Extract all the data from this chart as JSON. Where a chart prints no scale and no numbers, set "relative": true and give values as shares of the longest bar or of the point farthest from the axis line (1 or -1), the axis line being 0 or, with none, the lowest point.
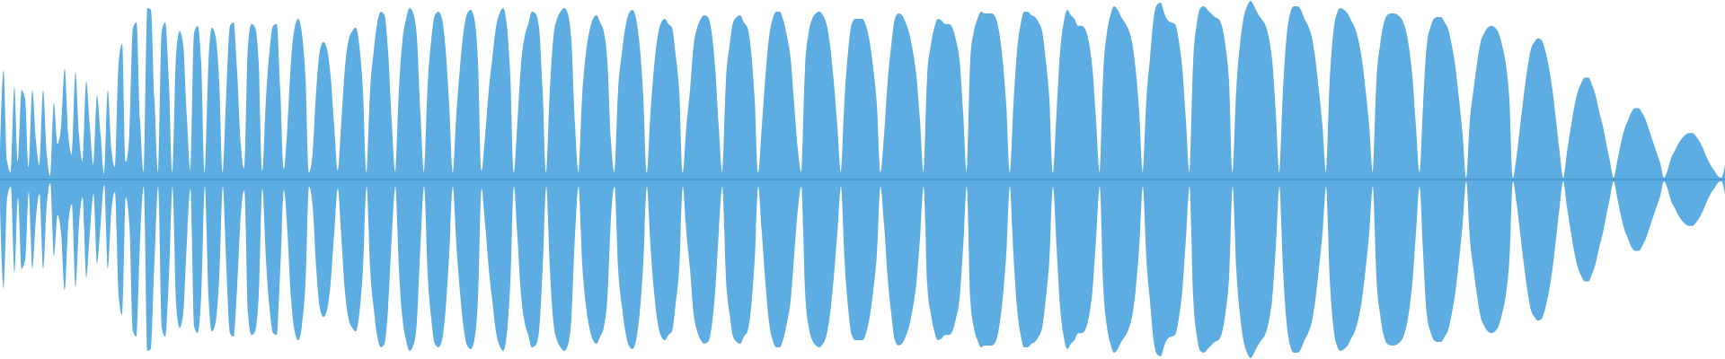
{
  "chart_data": {
    "type": "area",
    "relative": true,
    "categories": [
      null,
      null,
      null,
      null,
      null,
      null,
      null,
      null,
      null,
      null,
      null,
      null,
      null,
      null,
      null,
      null,
      null,
      null,
      null,
      null,
      null,
      null,
      null,
      null,
      null,
      null,
      null,
      null,
      null,
      null,
      null,
      null,
      null,
      null,
      null,
      null,
      null,
      null,
      null,
      null,
      null,
      null,
      null,
      null,
      null,
      null,
      null,
      null,
      null,
      null,
      null,
      null,
      null,
      null,
      null,
      null,
      null,
      null,
      null,
      null,
      null,
      null,
      null,
      null,
      null,
      null,
      null,
      null,
      null,
      null,
      null,
      null,
      null,
      null,
      null,
      null,
      null,
      null,
      null,
      null,
      null,
      null,
      null,
      null,
      null,
      null,
      null,
      null,
      null,
      null,
      null,
      null,
      null,
      null,
      null,
      null,
      null,
      null,
      null,
      null,
      null,
      null,
      null,
      null,
      null,
      null,
      null,
      null,
      null,
      null,
      null,
      null,
      null,
      null,
      null,
      null,
      null,
      null,
      null,
      null,
      null,
      null,
      null,
      null,
      null,
      null,
      null,
      null,
      null,
      null,
      null,
      null,
      null,
      null,
      null,
      null,
      null,
      null,
      null,
      null,
      null,
      null,
      null,
      null,
      null,
      null,
      null,
      null,
      null,
      null,
      null,
      null,
      null,
      null,
      null,
      null,
      null,
      null,
      null,
      null,
      null,
      null,
      null,
      null,
      null,
      null,
      null,
      null,
      null,
      null,
      null,
      null,
      null,
      null,
      null,
      null,
      null,
      null,
      null,
      null,
      null,
      null,
      null,
      null,
      null,
      null,
      null,
      null,
      null,
      null,
      null,
      null,
      null,
      null,
      null,
      null,
      null,
      null,
      null,
      null,
      null,
      null,
      null,
      null,
      null,
      null,
      null,
      null,
      null,
      null,
      null,
      null,
      null,
      null,
      null,
      null,
      null,
      null,
      null,
      null,
      null,
      null,
      null,
      null,
      null,
      null,
      null,
      null,
      null,
      null,
      null,
      null,
      null,
      null,
      null,
      null,
      null,
      null,
      null,
      null,
      null,
      null,
      null,
      null,
      null,
      null,
      null,
      null,
      null,
      null,
      null,
      null,
      null,
      null,
      null,
      null,
      null,
      null,
      null,
      null,
      null,
      null,
      null,
      null,
      null,
      null,
      null,
      null,
      null,
      null,
      null,
      null,
      null,
      null,
      null,
      null,
      null,
      null,
      null,
      null,
      null,
      null,
      null,
      null,
      null,
      null,
      null,
      null,
      null,
      null,
      null,
      null,
      null,
      null,
      null,
      null,
      null,
      null,
      null,
      null,
      null,
      null,
      null,
      null,
      null,
      null,
      null,
      null,
      null,
      null,
      null,
      null,
      null,
      null,
      null,
      null,
      null,
      null,
      null,
      null,
      null,
      null,
      null,
      null,
      null,
      null,
      null,
      null,
      null,
      null,
      null,
      null,
      null,
      null,
      null,
      null,
      null,
      null,
      null,
      null,
      null,
      null,
      null,
      null,
      null,
      null,
      null,
      null,
      null,
      null,
      null,
      null,
      null,
      null,
      null,
      null,
      null,
      null,
      null,
      null,
      null,
      null,
      null,
      null,
      null,
      null,
      null,
      null,
      null,
      null,
      null,
      null,
      null,
      null,
      null,
      null,
      null,
      null,
      null,
      null,
      null,
      null,
      null,
      null,
      null,
      null,
      null,
      null,
      null,
      null,
      null,
      null,
      null,
      null,
      null,
      null,
      null,
      null,
      null,
      null,
      null,
      null,
      null,
      null,
      null,
      null,
      null,
      null,
      null,
      null,
      null,
      null,
      null,
      null,
      null,
      null,
      null,
      null,
      null,
      null,
      null,
      null,
      null,
      null,
      null,
      null,
      null,
      null,
      null,
      null,
      null,
      null,
      null,
      null,
      null,
      null,
      null,
      null,
      null,
      null,
      null,
      null,
      null,
      null,
      null,
      null,
      null,
      null,
      null,
      null,
      null,
      null,
      null,
      null,
      null,
      null,
      null,
      null,
      null,
      null,
      null,
      null,
      null,
      null,
      null,
      null,
      null,
      null,
      null,
      null,
      null,
      null,
      null,
      null,
      null,
      null,
      null,
      null,
      null,
      null,
      null
    ],
    "series": [
      {
        "color": "#5dade2",
        "values": [
          0.16,
          0.61,
          0.1,
          0.04,
          0.52,
          0.1,
          0.5,
          0.45,
          0.07,
          0.5,
          0.22,
          0.08,
          0.5,
          0.15,
          0.02,
          0.43,
          0.2,
          0.3,
          0.62,
          0.25,
          0.14,
          0.6,
          0.25,
          0.1,
          0.55,
          0.3,
          0.08,
          0.47,
          0.25,
          0.03,
          0.5,
          0.17,
          0.07,
          0.65,
          0.76,
          0.1,
          0.25,
          0.85,
          0.88,
          0.33,
          0.04,
          0.96,
          0.95,
          0.45,
          0.04,
          0.83,
          0.88,
          0.55,
          0.04,
          0.7,
          0.83,
          0.75,
          0.35,
          0.05,
          0.82,
          0.86,
          0.65,
          0.04,
          0.65,
          0.85,
          0.8,
          0.55,
          0.04,
          0.5,
          0.86,
          0.88,
          0.6,
          0.2,
          0.06,
          0.75,
          0.87,
          0.85,
          0.65,
          0.05,
          0.45,
          0.72,
          0.86,
          0.87,
          0.5,
          0.06,
          0.3,
          0.67,
          0.85,
          0.9,
          0.82,
          0.58,
          0.04,
          0.15,
          0.5,
          0.72,
          0.77,
          0.73,
          0.58,
          0.3,
          0.05,
          0.33,
          0.63,
          0.78,
          0.83,
          0.85,
          0.75,
          0.5,
          0.04,
          0.5,
          0.72,
          0.88,
          0.94,
          0.92,
          0.72,
          0.33,
          0.04,
          0.5,
          0.78,
          0.9,
          0.96,
          0.93,
          0.8,
          0.37,
          0.04,
          0.53,
          0.78,
          0.92,
          0.94,
          0.9,
          0.73,
          0.42,
          0.04,
          0.37,
          0.63,
          0.83,
          0.93,
          0.95,
          0.9,
          0.67,
          0.05,
          0.25,
          0.5,
          0.68,
          0.85,
          0.93,
          0.96,
          0.87,
          0.58,
          0.04,
          0.33,
          0.65,
          0.8,
          0.87,
          0.94,
          0.93,
          0.85,
          0.5,
          0.04,
          0.5,
          0.8,
          0.9,
          0.94,
          0.96,
          0.93,
          0.78,
          0.31,
          0.04,
          0.47,
          0.7,
          0.83,
          0.9,
          0.92,
          0.88,
          0.83,
          0.67,
          0.22,
          0.04,
          0.5,
          0.7,
          0.85,
          0.93,
          0.95,
          0.9,
          0.75,
          0.47,
          0.04,
          0.37,
          0.63,
          0.8,
          0.88,
          0.9,
          0.87,
          0.85,
          0.7,
          0.5,
          0.04,
          0.3,
          0.5,
          0.75,
          0.85,
          0.9,
          0.92,
          0.91,
          0.83,
          0.63,
          0.3,
          0.04,
          0.55,
          0.75,
          0.88,
          0.91,
          0.92,
          0.88,
          0.85,
          0.72,
          0.45,
          0.04,
          0.3,
          0.58,
          0.8,
          0.9,
          0.94,
          0.94,
          0.89,
          0.8,
          0.68,
          0.42,
          0.17,
          0.04,
          0.62,
          0.82,
          0.9,
          0.93,
          0.94,
          0.92,
          0.87,
          0.75,
          0.55,
          0.3,
          0.04,
          0.45,
          0.72,
          0.87,
          0.9,
          0.9,
          0.9,
          0.86,
          0.77,
          0.62,
          0.42,
          0.04,
          0.25,
          0.55,
          0.75,
          0.9,
          0.93,
          0.92,
          0.88,
          0.82,
          0.72,
          0.58,
          0.33,
          0.04,
          0.58,
          0.75,
          0.85,
          0.9,
          0.89,
          0.87,
          0.87,
          0.85,
          0.78,
          0.67,
          0.38,
          0.04,
          0.67,
          0.83,
          0.9,
          0.94,
          0.93,
          0.93,
          0.93,
          0.91,
          0.83,
          0.67,
          0.42,
          0.04,
          0.42,
          0.72,
          0.87,
          0.94,
          0.94,
          0.92,
          0.91,
          0.88,
          0.83,
          0.67,
          0.45,
          0.04,
          0.38,
          0.72,
          0.88,
          0.95,
          0.92,
          0.9,
          0.86,
          0.86,
          0.84,
          0.77,
          0.62,
          0.33,
          0.04,
          0.6,
          0.82,
          0.92,
          0.97,
          0.95,
          0.91,
          0.88,
          0.84,
          0.77,
          0.62,
          0.38,
          0.04,
          0.45,
          0.68,
          0.9,
          0.98,
          0.99,
          0.93,
          0.89,
          0.88,
          0.87,
          0.78,
          0.62,
          0.33,
          0.04,
          0.65,
          0.87,
          0.96,
          0.97,
          0.95,
          0.93,
          0.91,
          0.9,
          0.86,
          0.75,
          0.55,
          0.04,
          0.5,
          0.75,
          0.9,
          0.97,
          1,
          0.97,
          0.93,
          0.9,
          0.87,
          0.8,
          0.67,
          0.38,
          0.04,
          0.5,
          0.8,
          0.93,
          0.97,
          0.97,
          0.95,
          0.9,
          0.86,
          0.8,
          0.68,
          0.5,
          0.3,
          0.04,
          0.55,
          0.82,
          0.93,
          0.96,
          0.95,
          0.93,
          0.89,
          0.85,
          0.78,
          0.67,
          0.5,
          0.3,
          0.04,
          0.55,
          0.75,
          0.87,
          0.92,
          0.93,
          0.93,
          0.92,
          0.9,
          0.85,
          0.75,
          0.58,
          0.3,
          0.04,
          0.42,
          0.75,
          0.85,
          0.9,
          0.91,
          0.91,
          0.88,
          0.84,
          0.75,
          0.63,
          0.45,
          0.25,
          0.01,
          0.33,
          0.5,
          0.65,
          0.77,
          0.82,
          0.85,
          0.86,
          0.85,
          0.82,
          0.75,
          0.65,
          0.45,
          0.01,
          0.13,
          0.3,
          0.47,
          0.62,
          0.73,
          0.77,
          0.79,
          0.78,
          0.72,
          0.63,
          0.5,
          0.33,
          0.15,
          0.01,
          0.15,
          0.28,
          0.4,
          0.49,
          0.54,
          0.57,
          0.57,
          0.53,
          0.47,
          0.38,
          0.3,
          0.2,
          0.1,
          0.01,
          0.1,
          0.2,
          0.28,
          0.33,
          0.38,
          0.4,
          0.4,
          0.37,
          0.33,
          0.27,
          0.21,
          0.15,
          0.09,
          0.01,
          0.05,
          0.12,
          0.16,
          0.2,
          0.23,
          0.25,
          0.26,
          0.26,
          0.24,
          0.21,
          0.17,
          0.12,
          0.08,
          0.05,
          0.02,
          0.01,
          0.08
        ]
      },
      {
        "color": "#5dade2",
        "values": [
          -0.16,
          -0.61,
          -0.1,
          -0.04,
          -0.52,
          -0.1,
          -0.5,
          -0.45,
          -0.07,
          -0.5,
          -0.22,
          -0.08,
          -0.5,
          -0.15,
          -0.02,
          -0.43,
          -0.2,
          -0.3,
          -0.62,
          -0.25,
          -0.14,
          -0.6,
          -0.25,
          -0.1,
          -0.55,
          -0.3,
          -0.08,
          -0.47,
          -0.25,
          -0.03,
          -0.5,
          -0.17,
          -0.07,
          -0.65,
          -0.76,
          -0.1,
          -0.25,
          -0.85,
          -0.88,
          -0.33,
          -0.04,
          -0.96,
          -0.95,
          -0.45,
          -0.04,
          -0.83,
          -0.88,
          -0.55,
          -0.04,
          -0.7,
          -0.83,
          -0.75,
          -0.35,
          -0.05,
          -0.82,
          -0.86,
          -0.65,
          -0.04,
          -0.65,
          -0.85,
          -0.8,
          -0.55,
          -0.04,
          -0.5,
          -0.86,
          -0.88,
          -0.6,
          -0.2,
          -0.06,
          -0.75,
          -0.87,
          -0.85,
          -0.65,
          -0.05,
          -0.45,
          -0.72,
          -0.86,
          -0.87,
          -0.5,
          -0.06,
          -0.3,
          -0.67,
          -0.85,
          -0.9,
          -0.82,
          -0.58,
          -0.04,
          -0.15,
          -0.5,
          -0.72,
          -0.77,
          -0.73,
          -0.58,
          -0.3,
          -0.05,
          -0.33,
          -0.63,
          -0.78,
          -0.83,
          -0.85,
          -0.75,
          -0.5,
          -0.04,
          -0.5,
          -0.72,
          -0.88,
          -0.94,
          -0.92,
          -0.72,
          -0.33,
          -0.04,
          -0.5,
          -0.78,
          -0.9,
          -0.96,
          -0.93,
          -0.8,
          -0.37,
          -0.04,
          -0.53,
          -0.78,
          -0.92,
          -0.94,
          -0.9,
          -0.73,
          -0.42,
          -0.04,
          -0.37,
          -0.63,
          -0.83,
          -0.93,
          -0.95,
          -0.9,
          -0.67,
          -0.05,
          -0.25,
          -0.5,
          -0.68,
          -0.85,
          -0.93,
          -0.96,
          -0.87,
          -0.58,
          -0.04,
          -0.33,
          -0.65,
          -0.8,
          -0.87,
          -0.94,
          -0.93,
          -0.85,
          -0.5,
          -0.04,
          -0.5,
          -0.8,
          -0.9,
          -0.94,
          -0.96,
          -0.93,
          -0.78,
          -0.31,
          -0.04,
          -0.47,
          -0.7,
          -0.83,
          -0.9,
          -0.92,
          -0.88,
          -0.83,
          -0.67,
          -0.22,
          -0.04,
          -0.5,
          -0.7,
          -0.85,
          -0.93,
          -0.95,
          -0.9,
          -0.75,
          -0.47,
          -0.04,
          -0.37,
          -0.63,
          -0.8,
          -0.88,
          -0.9,
          -0.87,
          -0.85,
          -0.7,
          -0.5,
          -0.04,
          -0.3,
          -0.5,
          -0.75,
          -0.85,
          -0.9,
          -0.92,
          -0.91,
          -0.83,
          -0.63,
          -0.3,
          -0.04,
          -0.55,
          -0.75,
          -0.88,
          -0.91,
          -0.92,
          -0.88,
          -0.85,
          -0.72,
          -0.45,
          -0.04,
          -0.3,
          -0.58,
          -0.8,
          -0.9,
          -0.94,
          -0.94,
          -0.89,
          -0.8,
          -0.68,
          -0.42,
          -0.17,
          -0.04,
          -0.62,
          -0.82,
          -0.9,
          -0.93,
          -0.94,
          -0.92,
          -0.87,
          -0.75,
          -0.55,
          -0.3,
          -0.04,
          -0.45,
          -0.72,
          -0.87,
          -0.9,
          -0.9,
          -0.9,
          -0.86,
          -0.77,
          -0.62,
          -0.42,
          -0.04,
          -0.25,
          -0.55,
          -0.75,
          -0.9,
          -0.93,
          -0.92,
          -0.88,
          -0.82,
          -0.72,
          -0.58,
          -0.33,
          -0.04,
          -0.58,
          -0.75,
          -0.85,
          -0.9,
          -0.89,
          -0.87,
          -0.87,
          -0.85,
          -0.78,
          -0.67,
          -0.38,
          -0.04,
          -0.67,
          -0.83,
          -0.9,
          -0.94,
          -0.93,
          -0.93,
          -0.93,
          -0.91,
          -0.83,
          -0.67,
          -0.42,
          -0.04,
          -0.42,
          -0.72,
          -0.87,
          -0.94,
          -0.94,
          -0.92,
          -0.91,
          -0.88,
          -0.83,
          -0.67,
          -0.45,
          -0.04,
          -0.38,
          -0.72,
          -0.88,
          -0.95,
          -0.92,
          -0.9,
          -0.86,
          -0.86,
          -0.84,
          -0.77,
          -0.62,
          -0.33,
          -0.04,
          -0.6,
          -0.82,
          -0.92,
          -0.97,
          -0.95,
          -0.91,
          -0.88,
          -0.84,
          -0.77,
          -0.62,
          -0.38,
          -0.04,
          -0.45,
          -0.68,
          -0.9,
          -0.98,
          -0.99,
          -0.93,
          -0.89,
          -0.88,
          -0.87,
          -0.78,
          -0.62,
          -0.33,
          -0.04,
          -0.65,
          -0.87,
          -0.96,
          -0.97,
          -0.95,
          -0.93,
          -0.91,
          -0.9,
          -0.86,
          -0.75,
          -0.55,
          -0.04,
          -0.5,
          -0.75,
          -0.9,
          -0.97,
          -1,
          -0.97,
          -0.93,
          -0.9,
          -0.87,
          -0.8,
          -0.67,
          -0.38,
          -0.04,
          -0.5,
          -0.8,
          -0.93,
          -0.97,
          -0.97,
          -0.95,
          -0.9,
          -0.86,
          -0.8,
          -0.68,
          -0.5,
          -0.3,
          -0.04,
          -0.55,
          -0.82,
          -0.93,
          -0.96,
          -0.95,
          -0.93,
          -0.89,
          -0.85,
          -0.78,
          -0.67,
          -0.5,
          -0.3,
          -0.04,
          -0.55,
          -0.75,
          -0.87,
          -0.92,
          -0.93,
          -0.93,
          -0.92,
          -0.9,
          -0.85,
          -0.75,
          -0.58,
          -0.3,
          -0.04,
          -0.42,
          -0.75,
          -0.85,
          -0.9,
          -0.91,
          -0.91,
          -0.88,
          -0.84,
          -0.75,
          -0.63,
          -0.45,
          -0.25,
          -0.01,
          -0.33,
          -0.5,
          -0.65,
          -0.77,
          -0.82,
          -0.85,
          -0.86,
          -0.85,
          -0.82,
          -0.75,
          -0.65,
          -0.45,
          -0.01,
          -0.13,
          -0.3,
          -0.47,
          -0.62,
          -0.73,
          -0.77,
          -0.79,
          -0.78,
          -0.72,
          -0.63,
          -0.5,
          -0.33,
          -0.15,
          -0.01,
          -0.15,
          -0.28,
          -0.4,
          -0.49,
          -0.54,
          -0.57,
          -0.57,
          -0.53,
          -0.47,
          -0.38,
          -0.3,
          -0.2,
          -0.1,
          -0.01,
          -0.1,
          -0.2,
          -0.28,
          -0.33,
          -0.38,
          -0.4,
          -0.4,
          -0.37,
          -0.33,
          -0.27,
          -0.21,
          -0.15,
          -0.09,
          -0.01,
          -0.05,
          -0.12,
          -0.16,
          -0.2,
          -0.23,
          -0.25,
          -0.26,
          -0.26,
          -0.24,
          -0.21,
          -0.17,
          -0.12,
          -0.08,
          -0.05,
          -0.02,
          -0.01,
          -0.08
        ]
      }
    ],
    "ref_lines": [
      {
        "axis": "y",
        "value": 0,
        "color": "#3f87bd"
      }
    ]
  }
}
